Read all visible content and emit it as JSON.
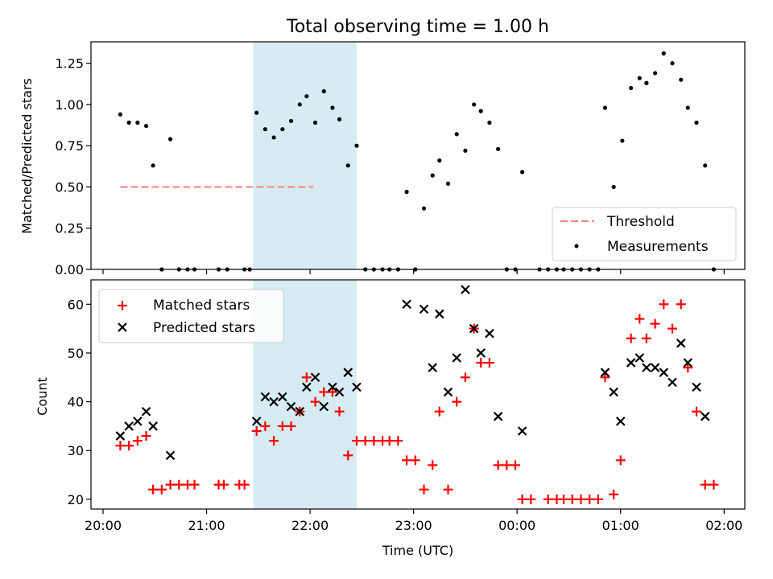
{
  "title": "Total observing time = 1.00 h",
  "chart_data": [
    {
      "type": "scatter",
      "ylabel": "Matched/Predicted stars",
      "xlim": [
        "19:53",
        "02:12"
      ],
      "ylim": [
        0,
        1.38
      ],
      "yticks": [
        "0.00",
        "0.25",
        "0.50",
        "0.75",
        "1.00",
        "1.25"
      ],
      "xticks": [
        "20:00",
        "21:00",
        "22:00",
        "23:00",
        "00:00",
        "01:00",
        "02:00"
      ],
      "shaded_interval": [
        "21:27",
        "22:27"
      ],
      "threshold": {
        "name": "Threshold",
        "value": 0.5,
        "x_range": [
          "20:10",
          "22:02"
        ],
        "color": "#ff7f7f"
      },
      "legend": {
        "placement": "lower right",
        "entries": [
          "Threshold",
          "Measurements"
        ]
      },
      "series": [
        {
          "name": "Measurements",
          "color": "#000000",
          "points": [
            [
              "20:10",
              0.94
            ],
            [
              "20:15",
              0.89
            ],
            [
              "20:20",
              0.89
            ],
            [
              "20:25",
              0.87
            ],
            [
              "20:29",
              0.63
            ],
            [
              "20:34",
              0.0
            ],
            [
              "20:39",
              0.79
            ],
            [
              "20:44",
              0.0
            ],
            [
              "20:49",
              0.0
            ],
            [
              "20:53",
              0.0
            ],
            [
              "21:07",
              0.0
            ],
            [
              "21:12",
              0.0
            ],
            [
              "21:22",
              0.0
            ],
            [
              "21:25",
              0.0
            ],
            [
              "21:29",
              0.95
            ],
            [
              "21:34",
              0.85
            ],
            [
              "21:39",
              0.8
            ],
            [
              "21:44",
              0.85
            ],
            [
              "21:49",
              0.9
            ],
            [
              "21:54",
              1.0
            ],
            [
              "21:58",
              1.05
            ],
            [
              "22:03",
              0.89
            ],
            [
              "22:08",
              1.08
            ],
            [
              "22:13",
              0.98
            ],
            [
              "22:17",
              0.91
            ],
            [
              "22:22",
              0.63
            ],
            [
              "22:27",
              0.75
            ],
            [
              "22:32",
              0.0
            ],
            [
              "22:37",
              0.0
            ],
            [
              "22:42",
              0.0
            ],
            [
              "22:46",
              0.0
            ],
            [
              "22:51",
              0.0
            ],
            [
              "22:56",
              0.47
            ],
            [
              "23:01",
              0.0
            ],
            [
              "23:06",
              0.37
            ],
            [
              "23:11",
              0.57
            ],
            [
              "23:15",
              0.66
            ],
            [
              "23:20",
              0.52
            ],
            [
              "23:25",
              0.82
            ],
            [
              "23:30",
              0.72
            ],
            [
              "23:35",
              1.0
            ],
            [
              "23:39",
              0.96
            ],
            [
              "23:44",
              0.89
            ],
            [
              "23:49",
              0.73
            ],
            [
              "23:54",
              0.0
            ],
            [
              "23:59",
              0.0
            ],
            [
              "00:03",
              0.59
            ],
            [
              "00:13",
              0.0
            ],
            [
              "00:18",
              0.0
            ],
            [
              "00:23",
              0.0
            ],
            [
              "00:27",
              0.0
            ],
            [
              "00:32",
              0.0
            ],
            [
              "00:37",
              0.0
            ],
            [
              "00:42",
              0.0
            ],
            [
              "00:47",
              0.0
            ],
            [
              "00:51",
              0.98
            ],
            [
              "00:56",
              0.5
            ],
            [
              "01:01",
              0.78
            ],
            [
              "01:06",
              1.1
            ],
            [
              "01:11",
              1.16
            ],
            [
              "01:15",
              1.13
            ],
            [
              "01:20",
              1.19
            ],
            [
              "01:25",
              1.31
            ],
            [
              "01:30",
              1.25
            ],
            [
              "01:35",
              1.15
            ],
            [
              "01:39",
              0.98
            ],
            [
              "01:44",
              0.89
            ],
            [
              "01:49",
              0.63
            ],
            [
              "01:54",
              0.0
            ]
          ]
        }
      ]
    },
    {
      "type": "scatter",
      "xlabel": "Time (UTC)",
      "ylabel": "Count",
      "xlim": [
        "19:53",
        "02:12"
      ],
      "ylim": [
        18,
        65
      ],
      "yticks": [
        "20",
        "30",
        "40",
        "50",
        "60"
      ],
      "xticks": [
        "20:00",
        "21:00",
        "22:00",
        "23:00",
        "00:00",
        "01:00",
        "02:00"
      ],
      "shaded_interval": [
        "21:27",
        "22:27"
      ],
      "legend": {
        "placement": "upper left",
        "entries": [
          "Matched stars",
          "Predicted stars"
        ]
      },
      "series": [
        {
          "name": "Matched stars",
          "marker": "plus",
          "color": "#ff0000",
          "points": [
            [
              "20:10",
              31
            ],
            [
              "20:15",
              31
            ],
            [
              "20:20",
              32
            ],
            [
              "20:25",
              33
            ],
            [
              "20:29",
              22
            ],
            [
              "20:34",
              22
            ],
            [
              "20:39",
              23
            ],
            [
              "20:44",
              23
            ],
            [
              "20:49",
              23
            ],
            [
              "20:53",
              23
            ],
            [
              "21:07",
              23
            ],
            [
              "21:10",
              23
            ],
            [
              "21:19",
              23
            ],
            [
              "21:22",
              23
            ],
            [
              "21:29",
              34
            ],
            [
              "21:34",
              35
            ],
            [
              "21:39",
              32
            ],
            [
              "21:44",
              35
            ],
            [
              "21:49",
              35
            ],
            [
              "21:54",
              38
            ],
            [
              "21:58",
              45
            ],
            [
              "22:03",
              40
            ],
            [
              "22:08",
              42
            ],
            [
              "22:13",
              42
            ],
            [
              "22:17",
              38
            ],
            [
              "22:22",
              29
            ],
            [
              "22:27",
              32
            ],
            [
              "22:32",
              32
            ],
            [
              "22:37",
              32
            ],
            [
              "22:42",
              32
            ],
            [
              "22:46",
              32
            ],
            [
              "22:51",
              32
            ],
            [
              "22:56",
              28
            ],
            [
              "23:01",
              28
            ],
            [
              "23:06",
              22
            ],
            [
              "23:11",
              27
            ],
            [
              "23:15",
              38
            ],
            [
              "23:20",
              22
            ],
            [
              "23:25",
              40
            ],
            [
              "23:30",
              45
            ],
            [
              "23:35",
              55
            ],
            [
              "23:39",
              48
            ],
            [
              "23:44",
              48
            ],
            [
              "23:49",
              27
            ],
            [
              "23:54",
              27
            ],
            [
              "23:59",
              27
            ],
            [
              "00:03",
              20
            ],
            [
              "00:08",
              20
            ],
            [
              "00:18",
              20
            ],
            [
              "00:23",
              20
            ],
            [
              "00:27",
              20
            ],
            [
              "00:32",
              20
            ],
            [
              "00:37",
              20
            ],
            [
              "00:42",
              20
            ],
            [
              "00:47",
              20
            ],
            [
              "00:51",
              45
            ],
            [
              "00:56",
              21
            ],
            [
              "01:00",
              28
            ],
            [
              "01:06",
              53
            ],
            [
              "01:11",
              57
            ],
            [
              "01:15",
              53
            ],
            [
              "01:20",
              56
            ],
            [
              "01:25",
              60
            ],
            [
              "01:30",
              55
            ],
            [
              "01:35",
              60
            ],
            [
              "01:39",
              47
            ],
            [
              "01:44",
              38
            ],
            [
              "01:49",
              23
            ],
            [
              "01:54",
              23
            ]
          ]
        },
        {
          "name": "Predicted stars",
          "marker": "x",
          "color": "#000000",
          "points": [
            [
              "20:10",
              33
            ],
            [
              "20:15",
              35
            ],
            [
              "20:20",
              36
            ],
            [
              "20:25",
              38
            ],
            [
              "20:29",
              35
            ],
            [
              "20:39",
              29
            ],
            [
              "21:29",
              36
            ],
            [
              "21:34",
              41
            ],
            [
              "21:39",
              40
            ],
            [
              "21:44",
              41
            ],
            [
              "21:49",
              39
            ],
            [
              "21:54",
              38
            ],
            [
              "21:58",
              43
            ],
            [
              "22:03",
              45
            ],
            [
              "22:08",
              39
            ],
            [
              "22:13",
              43
            ],
            [
              "22:17",
              42
            ],
            [
              "22:22",
              46
            ],
            [
              "22:27",
              43
            ],
            [
              "22:56",
              60
            ],
            [
              "23:06",
              59
            ],
            [
              "23:11",
              47
            ],
            [
              "23:15",
              58
            ],
            [
              "23:20",
              42
            ],
            [
              "23:25",
              49
            ],
            [
              "23:30",
              63
            ],
            [
              "23:35",
              55
            ],
            [
              "23:39",
              50
            ],
            [
              "23:44",
              54
            ],
            [
              "23:49",
              37
            ],
            [
              "00:03",
              34
            ],
            [
              "00:51",
              46
            ],
            [
              "00:56",
              42
            ],
            [
              "01:00",
              36
            ],
            [
              "01:06",
              48
            ],
            [
              "01:11",
              49
            ],
            [
              "01:15",
              47
            ],
            [
              "01:20",
              47
            ],
            [
              "01:25",
              46
            ],
            [
              "01:30",
              44
            ],
            [
              "01:35",
              52
            ],
            [
              "01:39",
              48
            ],
            [
              "01:44",
              43
            ],
            [
              "01:49",
              37
            ]
          ]
        }
      ]
    }
  ]
}
